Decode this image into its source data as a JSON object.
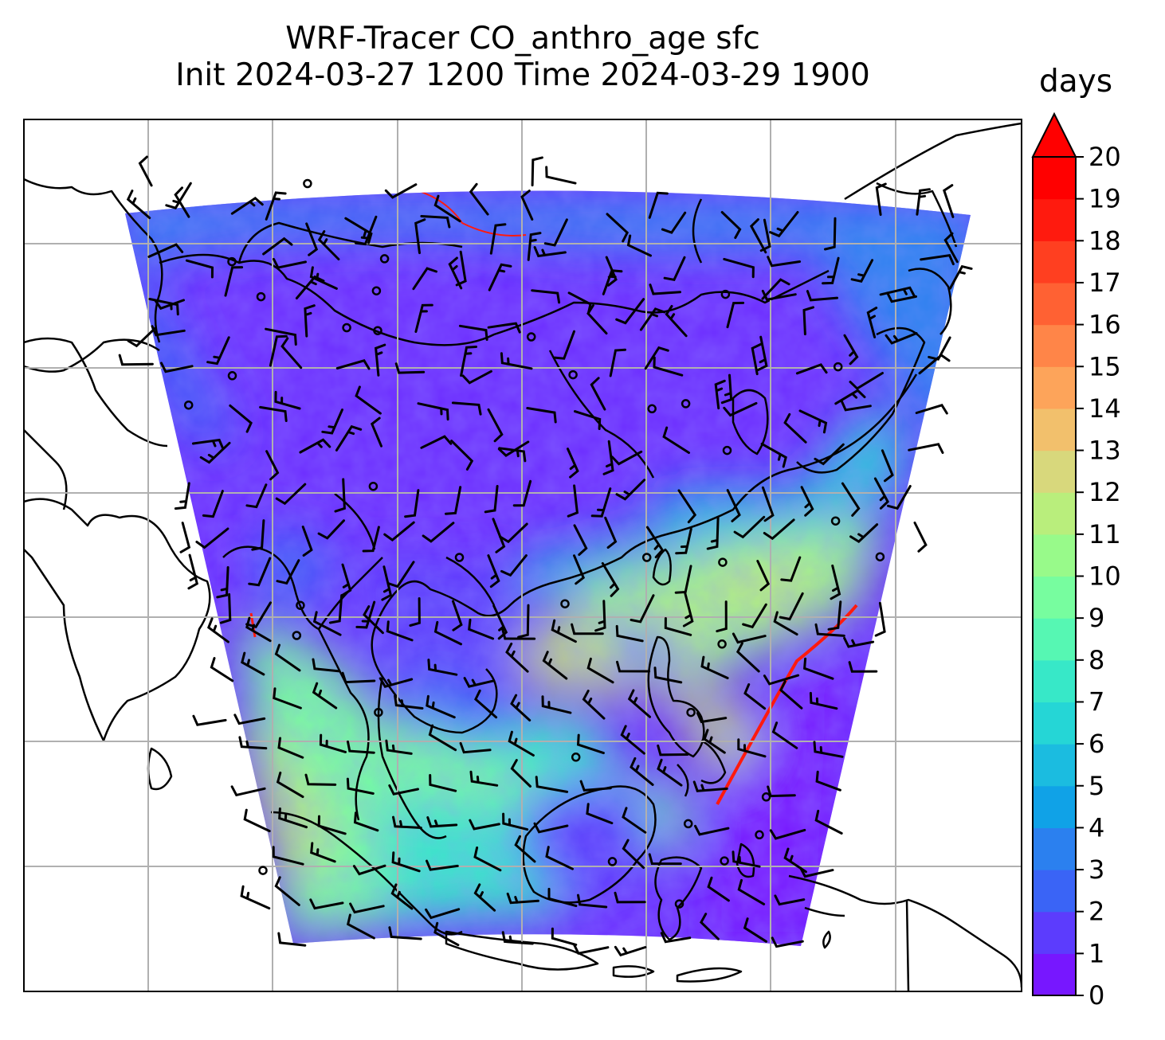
{
  "title_line1": "WRF-Tracer CO_anthro_age sfc",
  "title_line2": "Init 2024-03-27 1200 Time 2024-03-29 1900",
  "colorbar": {
    "unit": "days",
    "min": 0,
    "max": 20,
    "extend": "max",
    "ticks": [
      "0",
      "1",
      "2",
      "3",
      "4",
      "5",
      "6",
      "7",
      "8",
      "9",
      "10",
      "11",
      "12",
      "13",
      "14",
      "15",
      "16",
      "17",
      "18",
      "19",
      "20"
    ],
    "colors": [
      "#7717ff",
      "#5c3cfd",
      "#3a64f6",
      "#2b80ef",
      "#10a2e7",
      "#1bbce0",
      "#25d6d6",
      "#37e8c8",
      "#56f7b3",
      "#77fd9f",
      "#98fa8a",
      "#b9ee7c",
      "#d8d87c",
      "#f2c06c",
      "#fda45a",
      "#ff8548",
      "#ff6133",
      "#ff3f20",
      "#ff1a0e",
      "#ff0000"
    ],
    "extend_color": "#ff0000"
  },
  "map": {
    "colormap_name": "rainbow",
    "gridlines": true,
    "coastlines": true,
    "wind_barbs": true
  }
}
